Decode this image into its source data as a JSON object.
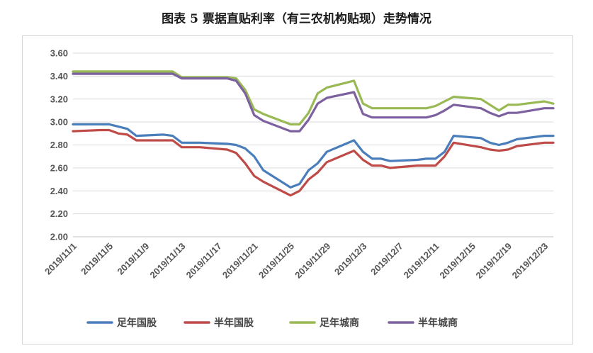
{
  "chart_data": {
    "type": "line",
    "title": "图表 5 票据直贴利率（有三农机构贴现）走势情况",
    "ylim": [
      2.0,
      3.6
    ],
    "yticks": [
      "3.60",
      "3.40",
      "3.20",
      "3.00",
      "2.80",
      "2.60",
      "2.40",
      "2.20",
      "2.00"
    ],
    "grid": "horizontal",
    "legend_position": "bottom",
    "xticklabels": [
      "2019/11/1",
      "2019/11/5",
      "2019/11/9",
      "2019/11/13",
      "2019/11/17",
      "2019/11/21",
      "2019/11/25",
      "2019/11/29",
      "2019/12/3",
      "2019/12/7",
      "2019/12/11",
      "2019/12/15",
      "2019/12/19",
      "2019/12/23"
    ],
    "x": [
      "2019/11/1",
      "2019/11/4",
      "2019/11/5",
      "2019/11/6",
      "2019/11/7",
      "2019/11/8",
      "2019/11/11",
      "2019/11/12",
      "2019/11/13",
      "2019/11/14",
      "2019/11/15",
      "2019/11/18",
      "2019/11/19",
      "2019/11/20",
      "2019/11/21",
      "2019/11/22",
      "2019/11/25",
      "2019/11/26",
      "2019/11/27",
      "2019/11/28",
      "2019/11/29",
      "2019/12/2",
      "2019/12/3",
      "2019/12/4",
      "2019/12/5",
      "2019/12/6",
      "2019/12/9",
      "2019/12/10",
      "2019/12/11",
      "2019/12/12",
      "2019/12/13",
      "2019/12/16",
      "2019/12/17",
      "2019/12/18",
      "2019/12/19",
      "2019/12/20",
      "2019/12/23",
      "2019/12/24"
    ],
    "series": [
      {
        "name": "足年国股",
        "color": "#4a7ebb",
        "values": [
          2.98,
          2.98,
          2.98,
          2.96,
          2.94,
          2.88,
          2.89,
          2.88,
          2.82,
          2.82,
          2.82,
          2.81,
          2.8,
          2.77,
          2.7,
          2.58,
          2.43,
          2.46,
          2.58,
          2.64,
          2.74,
          2.84,
          2.74,
          2.68,
          2.68,
          2.66,
          2.67,
          2.68,
          2.68,
          2.74,
          2.88,
          2.86,
          2.82,
          2.8,
          2.82,
          2.85,
          2.88,
          2.88
        ]
      },
      {
        "name": "半年国股",
        "color": "#be4b48",
        "values": [
          2.92,
          2.93,
          2.93,
          2.9,
          2.89,
          2.84,
          2.84,
          2.84,
          2.78,
          2.78,
          2.78,
          2.76,
          2.73,
          2.64,
          2.53,
          2.48,
          2.36,
          2.4,
          2.5,
          2.56,
          2.65,
          2.75,
          2.67,
          2.62,
          2.62,
          2.6,
          2.62,
          2.62,
          2.62,
          2.7,
          2.82,
          2.78,
          2.76,
          2.75,
          2.76,
          2.79,
          2.82,
          2.82
        ]
      },
      {
        "name": "足年城商",
        "color": "#98b954",
        "values": [
          3.44,
          3.44,
          3.44,
          3.44,
          3.44,
          3.44,
          3.44,
          3.44,
          3.39,
          3.39,
          3.39,
          3.39,
          3.38,
          3.28,
          3.11,
          3.07,
          2.98,
          2.98,
          3.08,
          3.25,
          3.3,
          3.36,
          3.16,
          3.12,
          3.12,
          3.12,
          3.12,
          3.12,
          3.14,
          3.18,
          3.22,
          3.2,
          3.15,
          3.1,
          3.15,
          3.15,
          3.18,
          3.16
        ]
      },
      {
        "name": "半年城商",
        "color": "#7d60a0",
        "values": [
          3.42,
          3.42,
          3.42,
          3.42,
          3.42,
          3.42,
          3.42,
          3.42,
          3.38,
          3.38,
          3.38,
          3.38,
          3.36,
          3.25,
          3.06,
          3.01,
          2.92,
          2.92,
          3.02,
          3.16,
          3.21,
          3.26,
          3.07,
          3.04,
          3.04,
          3.04,
          3.04,
          3.04,
          3.06,
          3.1,
          3.15,
          3.12,
          3.08,
          3.05,
          3.08,
          3.08,
          3.12,
          3.12
        ]
      }
    ]
  }
}
